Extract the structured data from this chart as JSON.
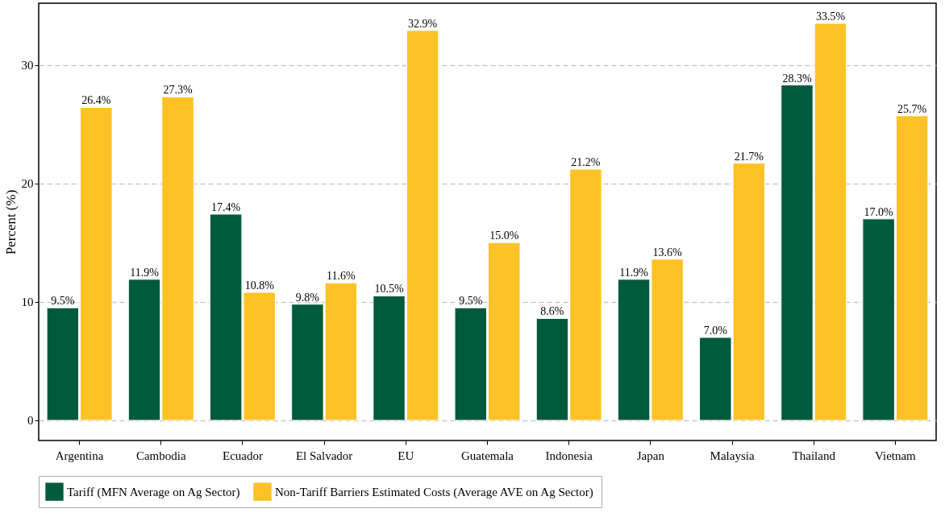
{
  "chart_data": {
    "type": "bar",
    "ylabel": "Percent (%)",
    "categories": [
      "Argentina",
      "Cambodia",
      "Ecuador",
      "El Salvador",
      "EU",
      "Guatemala",
      "Indonesia",
      "Japan",
      "Malaysia",
      "Thailand",
      "Vietnam"
    ],
    "series": [
      {
        "name": "Tariff (MFN Average on Ag Sector)",
        "color": "#005a3c",
        "values": [
          9.5,
          11.9,
          17.4,
          9.8,
          10.5,
          9.5,
          8.6,
          11.9,
          7.0,
          28.3,
          17.0
        ],
        "value_labels": [
          "9.5%",
          "11.9%",
          "17.4%",
          "9.8%",
          "10.5%",
          "9.5%",
          "8.6%",
          "11.9%",
          "7.0%",
          "28.3%",
          "17.0%"
        ]
      },
      {
        "name": "Non-Tariff Barriers Estimated Costs (Average AVE on Ag Sector)",
        "color": "#fdc226",
        "values": [
          26.4,
          27.3,
          10.8,
          11.6,
          32.9,
          15.0,
          21.2,
          13.6,
          21.7,
          33.5,
          25.7
        ],
        "value_labels": [
          "26.4%",
          "27.3%",
          "10.8%",
          "11.6%",
          "32.9%",
          "15.0%",
          "21.2%",
          "13.6%",
          "21.7%",
          "33.5%",
          "25.7%"
        ]
      }
    ],
    "ylim": [
      -1.7,
      35.2
    ],
    "yticks": [
      0,
      10,
      20,
      30
    ],
    "grid": "y",
    "legend": "bottom"
  }
}
